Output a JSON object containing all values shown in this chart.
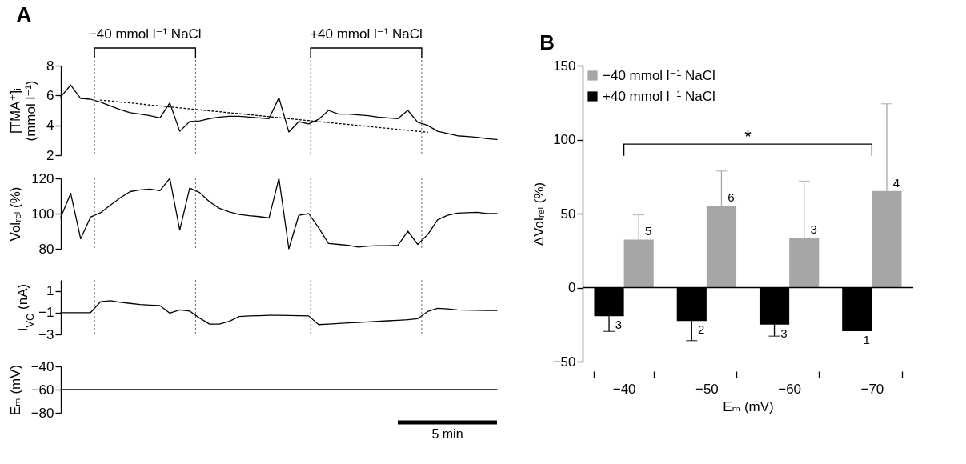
{
  "chart_data": [
    {
      "type": "line",
      "title": "A",
      "ylabel": "[TMA⁺]ᵢ\n(mmol l⁻¹)",
      "ylim": [
        2,
        8
      ],
      "yticks": [
        2,
        4,
        6,
        8
      ],
      "tick_labels": "y",
      "categories": [
        null,
        null,
        null,
        null,
        null,
        null,
        null,
        null,
        null,
        null,
        null,
        null,
        null,
        null,
        null,
        null,
        null,
        null,
        null,
        null,
        null,
        null,
        null,
        null,
        null,
        null,
        null,
        null,
        null,
        null,
        null,
        null,
        null,
        null,
        null,
        null,
        null,
        null,
        null,
        null,
        null,
        null,
        null,
        null,
        null
      ],
      "series": [
        {
          "color": "#000000",
          "values": [
            5.9,
            6.7,
            5.8,
            5.75,
            5.55,
            5.3,
            5.05,
            4.85,
            4.75,
            4.65,
            4.5,
            5.5,
            3.6,
            4.25,
            4.3,
            4.45,
            4.55,
            4.6,
            4.6,
            4.55,
            4.5,
            4.45,
            5.85,
            3.55,
            4.25,
            4.1,
            4.4,
            5.0,
            4.75,
            4.75,
            4.7,
            4.65,
            4.55,
            4.5,
            4.45,
            5.0,
            4.2,
            4.0,
            3.6,
            3.45,
            3.3,
            3.25,
            3.2,
            3.1,
            3.05
          ]
        },
        {
          "type": "line",
          "color": "#000000",
          "line_style": "dotted",
          "values": [
            null,
            null,
            null,
            null,
            5.69,
            5.63,
            5.56,
            5.5,
            5.43,
            5.36,
            5.3,
            5.23,
            5.17,
            5.1,
            5.04,
            4.97,
            4.91,
            4.84,
            4.78,
            4.71,
            4.65,
            4.58,
            4.51,
            4.45,
            4.38,
            4.32,
            4.25,
            4.19,
            4.12,
            4.06,
            3.99,
            3.93,
            3.86,
            3.8,
            3.73,
            3.67,
            3.6,
            3.54,
            null,
            null,
            null,
            null,
            null,
            null,
            null
          ]
        }
      ],
      "annotations": [
        "−40 mmol l⁻¹ NaCl",
        "+40 mmol l⁻¹ NaCl"
      ]
    },
    {
      "type": "line",
      "ylabel": "Volᵣₑₗ (%)",
      "ylim": [
        80,
        120
      ],
      "yticks": [
        80,
        100,
        120
      ],
      "tick_labels": "y",
      "color": "#000000",
      "categories": [
        null,
        null,
        null,
        null,
        null,
        null,
        null,
        null,
        null,
        null,
        null,
        null,
        null,
        null,
        null,
        null,
        null,
        null,
        null,
        null,
        null,
        null,
        null,
        null,
        null,
        null,
        null,
        null,
        null,
        null,
        null,
        null,
        null,
        null,
        null,
        null,
        null,
        null,
        null,
        null,
        null,
        null,
        null,
        null,
        null
      ],
      "values": [
        98,
        111.5,
        85.7,
        98,
        100.5,
        104.8,
        109,
        112.5,
        113.5,
        113.9,
        113,
        120,
        90.6,
        114.5,
        112,
        106.7,
        103,
        101,
        99.5,
        98.8,
        98.3,
        97.5,
        120,
        80,
        99,
        100,
        92,
        83,
        82.5,
        82,
        81,
        81.5,
        81.8,
        81.8,
        82,
        90,
        82.5,
        88,
        96.4,
        99,
        100.3,
        100.5,
        100.7,
        100,
        100
      ]
    },
    {
      "type": "line",
      "ylabel": "I$_{VC}$ (nA)",
      "ylim": [
        -3,
        2
      ],
      "yticks": [
        -3,
        -1,
        1
      ],
      "tick_labels": "y",
      "color": "#000000",
      "categories": [
        null,
        null,
        null,
        null,
        null,
        null,
        null,
        null,
        null,
        null,
        null,
        null,
        null,
        null,
        null,
        null,
        null,
        null,
        null,
        null,
        null,
        null,
        null,
        null,
        null,
        null,
        null,
        null,
        null,
        null,
        null,
        null,
        null,
        null,
        null,
        null,
        null,
        null,
        null,
        null,
        null,
        null,
        null,
        null,
        null
      ],
      "values": [
        -1,
        -1,
        -1,
        -1,
        0,
        0.1,
        -0.05,
        -0.15,
        -0.25,
        -0.3,
        -0.35,
        -1.05,
        -0.75,
        -0.85,
        -1.5,
        -2.05,
        -2.05,
        -1.8,
        -1.35,
        -1.3,
        -1.28,
        -1.25,
        -1.25,
        -1.27,
        -1.28,
        -1.3,
        -2.1,
        -2.05,
        -2.0,
        -1.95,
        -1.9,
        -1.85,
        -1.8,
        -1.75,
        -1.7,
        -1.65,
        -1.55,
        -0.9,
        -0.6,
        -0.65,
        -0.75,
        -0.77,
        -0.78,
        -0.8,
        -0.8
      ]
    },
    {
      "type": "line",
      "ylabel": "Eₘ (mV)",
      "ylim": [
        -80,
        -40
      ],
      "yticks": [
        -80,
        -60,
        -40
      ],
      "tick_labels": "y",
      "color": "#000000",
      "categories": [
        null,
        null,
        null,
        null,
        null,
        null,
        null,
        null,
        null,
        null,
        null,
        null,
        null,
        null,
        null,
        null,
        null,
        null,
        null,
        null,
        null,
        null,
        null,
        null,
        null,
        null,
        null,
        null,
        null,
        null,
        null,
        null,
        null,
        null,
        null,
        null,
        null,
        null,
        null,
        null,
        null,
        null,
        null,
        null,
        null
      ],
      "values": [
        -60,
        -60,
        -60,
        -60,
        -60,
        -60,
        -60,
        -60,
        -60,
        -60,
        -60,
        -60,
        -60,
        -60,
        -60,
        -60,
        -60,
        -60,
        -60,
        -60,
        -60,
        -60,
        -60,
        -60,
        -60,
        -60,
        -60,
        -60,
        -60,
        -60,
        -60,
        -60,
        -60,
        -60,
        -60,
        -60,
        -60,
        -60,
        -60,
        -60,
        -60,
        -60,
        -60,
        -60,
        -60
      ],
      "annotations": [
        "5 min"
      ]
    },
    {
      "type": "bar",
      "title": "B",
      "xlabel": "Eₘ (mV)",
      "ylabel": "ΔVolᵣₑₗ (%)",
      "categories": [
        "−40",
        "−50",
        "−60",
        "−70"
      ],
      "ylim": [
        -50,
        150
      ],
      "yticks": [
        -50,
        0,
        50,
        100,
        150
      ],
      "legend": "top left",
      "series": [
        {
          "name": "−40 mmol l⁻¹ NaCl",
          "color": "#a6a6a6",
          "values": [
            32.5,
            55.2,
            33.6,
            65.3
          ],
          "errors": [
            [
              32.5,
              49.2
            ],
            [
              55.2,
              78.8
            ],
            [
              33.6,
              71.9
            ],
            [
              65.3,
              124.2
            ]
          ]
        },
        {
          "name": "+40 mmol l⁻¹ NaCl",
          "color": "#000000",
          "values": [
            -19.3,
            -22.5,
            -25,
            -29.5
          ],
          "errors": [
            [
              -29.6,
              -19.3
            ],
            [
              -35.8,
              -22.5
            ],
            [
              -32.8,
              -25
            ],
            null
          ]
        }
      ],
      "ref_lines": [
        {
          "axis": "y",
          "value": 0
        }
      ],
      "annotations": [
        "*",
        "5",
        "6",
        "3",
        "4",
        "3",
        "2",
        "3",
        "1"
      ]
    }
  ]
}
